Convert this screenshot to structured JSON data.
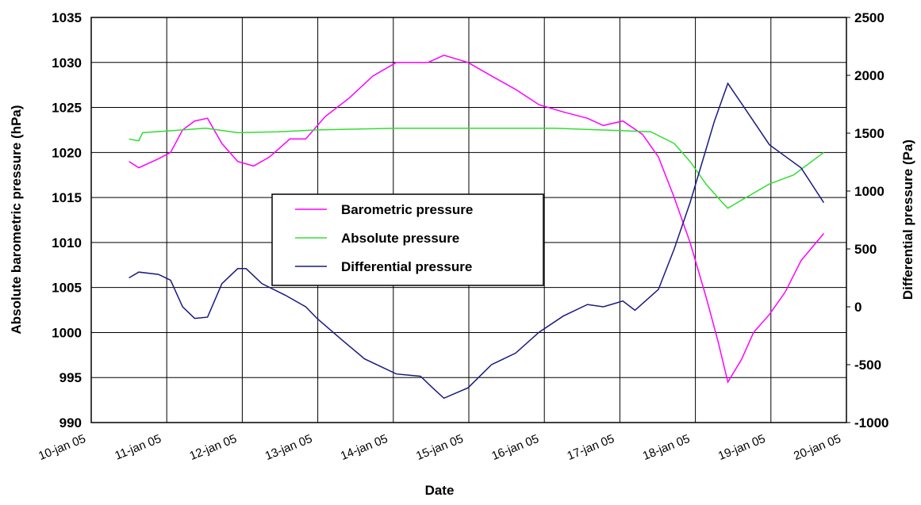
{
  "chart_data": {
    "type": "line",
    "x_label": "Date",
    "y_label": "Absolute barometric pressure (hPa)",
    "y2_label": "Differential pressure (Pa)",
    "xlim": [
      10,
      20
    ],
    "xticks": [
      {
        "value": 10,
        "label": "10-jan 05"
      },
      {
        "value": 11,
        "label": "11-jan 05"
      },
      {
        "value": 12,
        "label": "12-jan 05"
      },
      {
        "value": 13,
        "label": "13-jan 05"
      },
      {
        "value": 14,
        "label": "14-jan 05"
      },
      {
        "value": 15,
        "label": "15-jan 05"
      },
      {
        "value": 16,
        "label": "16-jan 05"
      },
      {
        "value": 17,
        "label": "17-jan 05"
      },
      {
        "value": 18,
        "label": "18-jan 05"
      },
      {
        "value": 19,
        "label": "19-jan 05"
      },
      {
        "value": 20,
        "label": "20-jan 05"
      }
    ],
    "ylim": [
      990,
      1035
    ],
    "yticks": [
      990,
      995,
      1000,
      1005,
      1010,
      1015,
      1020,
      1025,
      1030,
      1035
    ],
    "y2lim": [
      -1000,
      2500
    ],
    "y2ticks": [
      -1000,
      -500,
      0,
      500,
      1000,
      1500,
      2000,
      2500
    ],
    "grid": true,
    "series": [
      {
        "name": "Barometric pressure",
        "color": "#ff00ff",
        "x": [
          10.5,
          10.63,
          10.89,
          11.05,
          11.21,
          11.37,
          11.54,
          11.73,
          11.94,
          12.15,
          12.36,
          12.63,
          12.84,
          13.1,
          13.41,
          13.73,
          14.04,
          14.46,
          14.67,
          14.99,
          15.3,
          15.62,
          15.93,
          16.25,
          16.57,
          16.78,
          17.04,
          17.3,
          17.51,
          17.72,
          17.93,
          18.14,
          18.3,
          18.43,
          18.61,
          18.77,
          18.98,
          19.19,
          19.4,
          19.7
        ],
        "values": [
          1019,
          1018.3,
          1019.3,
          1020,
          1022.5,
          1023.5,
          1023.8,
          1021,
          1019,
          1018.5,
          1019.5,
          1021.5,
          1021.5,
          1024,
          1026,
          1028.5,
          1030,
          1030,
          1030.8,
          1030,
          1028.5,
          1027,
          1025.3,
          1024.5,
          1023.8,
          1023,
          1023.5,
          1022,
          1019.5,
          1015,
          1010,
          1004,
          999,
          994.5,
          997,
          1000,
          1002,
          1004.5,
          1008,
          1011
        ]
      },
      {
        "name": "Absolute pressure",
        "color": "#33dd33",
        "x": [
          10.5,
          10.63,
          10.68,
          11.21,
          11.52,
          11.94,
          12.47,
          12.99,
          14.04,
          16.14,
          17.41,
          17.72,
          17.93,
          18.14,
          18.35,
          18.43,
          18.67,
          18.98,
          19.3,
          19.7
        ],
        "values": [
          1021.5,
          1021.3,
          1022.2,
          1022.5,
          1022.7,
          1022.2,
          1022.3,
          1022.5,
          1022.7,
          1022.7,
          1022.3,
          1021,
          1019,
          1016.5,
          1014.5,
          1013.8,
          1015,
          1016.5,
          1017.5,
          1020
        ]
      },
      {
        "name": "Differential pressure",
        "color": "#1a1a80",
        "axis": "y2",
        "x": [
          10.5,
          10.63,
          10.89,
          11.05,
          11.21,
          11.37,
          11.54,
          11.73,
          11.94,
          12.05,
          12.26,
          12.57,
          12.84,
          12.99,
          13.31,
          13.62,
          14.04,
          14.36,
          14.52,
          14.67,
          14.99,
          15.3,
          15.62,
          15.93,
          16.25,
          16.57,
          16.78,
          17.04,
          17.2,
          17.51,
          17.72,
          17.93,
          18.09,
          18.25,
          18.43,
          18.67,
          18.98,
          19.19,
          19.4,
          19.7
        ],
        "values": [
          250,
          300,
          280,
          230,
          0,
          -100,
          -90,
          200,
          330,
          330,
          200,
          100,
          0,
          -100,
          -280,
          -450,
          -580,
          -600,
          -700,
          -790,
          -700,
          -500,
          -400,
          -220,
          -80,
          20,
          0,
          50,
          -30,
          150,
          500,
          900,
          1250,
          1600,
          1930,
          1700,
          1400,
          1300,
          1200,
          900
        ]
      }
    ]
  }
}
